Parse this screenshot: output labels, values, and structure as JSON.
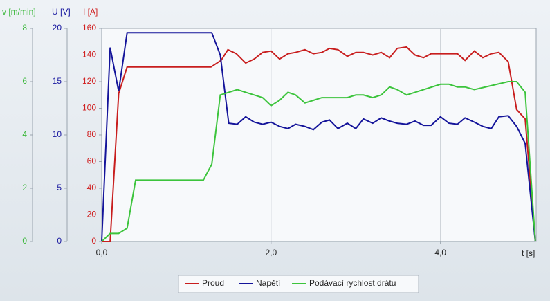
{
  "chart_data": {
    "type": "line",
    "y_label": "I [A]",
    "y2_label": "U [V]",
    "y3_label": "v [m/min]",
    "x_label": "t [s]",
    "xlim": [
      0,
      5.13
    ],
    "xticks": [
      {
        "value": 0,
        "label": "0,0"
      },
      {
        "value": 2,
        "label": "2,0"
      },
      {
        "value": 4,
        "label": "4,0"
      }
    ],
    "ylim": [
      0,
      160
    ],
    "yticks": [
      0,
      20,
      40,
      60,
      80,
      100,
      120,
      140,
      160
    ],
    "y2lim": [
      0,
      20
    ],
    "y2ticks": [
      0,
      5,
      10,
      15,
      20
    ],
    "y3lim": [
      0,
      8
    ],
    "y3ticks": [
      0,
      2,
      4,
      6,
      8
    ],
    "y_color": "#d02020",
    "y2_color": "#1a1aa0",
    "y3_color": "#3cb83c",
    "grid": true,
    "series": [
      {
        "name": "Proud",
        "color": "#c81e1e",
        "axis": "y",
        "x": [
          0,
          0.1,
          0.2,
          0.3,
          1.29,
          1.41,
          1.49,
          1.59,
          1.7,
          1.8,
          1.9,
          2.0,
          2.1,
          2.2,
          2.29,
          2.4,
          2.5,
          2.6,
          2.69,
          2.79,
          2.9,
          3.0,
          3.09,
          3.2,
          3.3,
          3.4,
          3.49,
          3.6,
          3.7,
          3.8,
          3.89,
          4.0,
          4.1,
          4.2,
          4.29,
          4.4,
          4.5,
          4.6,
          4.69,
          4.8,
          4.9,
          5.0,
          5.12
        ],
        "values": [
          0,
          0,
          111,
          131,
          131,
          136,
          144,
          141,
          134,
          137,
          142,
          143,
          137,
          141,
          142,
          144,
          141,
          142,
          145,
          144,
          139,
          142,
          142,
          140,
          142,
          138,
          145,
          146,
          140,
          138,
          141,
          141,
          141,
          141,
          136,
          143,
          138,
          141,
          142,
          135,
          99,
          92,
          0
        ]
      },
      {
        "name": "Napětí",
        "color": "#14149a",
        "axis": "y2",
        "x": [
          0,
          0.1,
          0.2,
          0.3,
          1.3,
          1.4,
          1.5,
          1.6,
          1.7,
          1.8,
          1.9,
          2.0,
          2.1,
          2.2,
          2.29,
          2.4,
          2.5,
          2.6,
          2.69,
          2.79,
          2.9,
          3.0,
          3.09,
          3.2,
          3.3,
          3.4,
          3.49,
          3.6,
          3.7,
          3.8,
          3.89,
          4.0,
          4.1,
          4.2,
          4.29,
          4.4,
          4.5,
          4.6,
          4.69,
          4.8,
          4.9,
          5.0,
          5.12
        ],
        "values": [
          0,
          18.2,
          14.1,
          19.6,
          19.6,
          17.5,
          11.1,
          11.0,
          11.7,
          11.2,
          11.0,
          11.2,
          10.8,
          10.6,
          11.0,
          10.8,
          10.5,
          11.2,
          11.4,
          10.6,
          11.1,
          10.6,
          11.5,
          11.1,
          11.6,
          11.3,
          11.1,
          11.0,
          11.3,
          10.9,
          10.9,
          11.7,
          11.1,
          11.0,
          11.6,
          11.2,
          10.8,
          10.6,
          11.7,
          11.8,
          10.8,
          9.2,
          0
        ]
      },
      {
        "name": "Podávací rychlost drátu",
        "color": "#3cc43c",
        "axis": "y3",
        "x": [
          0,
          0.1,
          0.2,
          0.3,
          0.4,
          1.2,
          1.3,
          1.4,
          1.5,
          1.6,
          1.7,
          1.9,
          2.0,
          2.1,
          2.2,
          2.29,
          2.4,
          2.5,
          2.6,
          2.69,
          2.9,
          3.0,
          3.09,
          3.2,
          3.3,
          3.4,
          3.49,
          3.6,
          4.0,
          4.1,
          4.2,
          4.29,
          4.4,
          4.8,
          4.9,
          5.0,
          5.12
        ],
        "values": [
          0,
          0.3,
          0.3,
          0.5,
          2.3,
          2.3,
          2.9,
          5.5,
          5.6,
          5.7,
          5.6,
          5.4,
          5.1,
          5.3,
          5.6,
          5.5,
          5.2,
          5.3,
          5.4,
          5.4,
          5.4,
          5.5,
          5.5,
          5.4,
          5.5,
          5.8,
          5.7,
          5.5,
          5.9,
          5.9,
          5.8,
          5.8,
          5.7,
          6.0,
          6.0,
          5.6,
          0
        ]
      }
    ]
  }
}
